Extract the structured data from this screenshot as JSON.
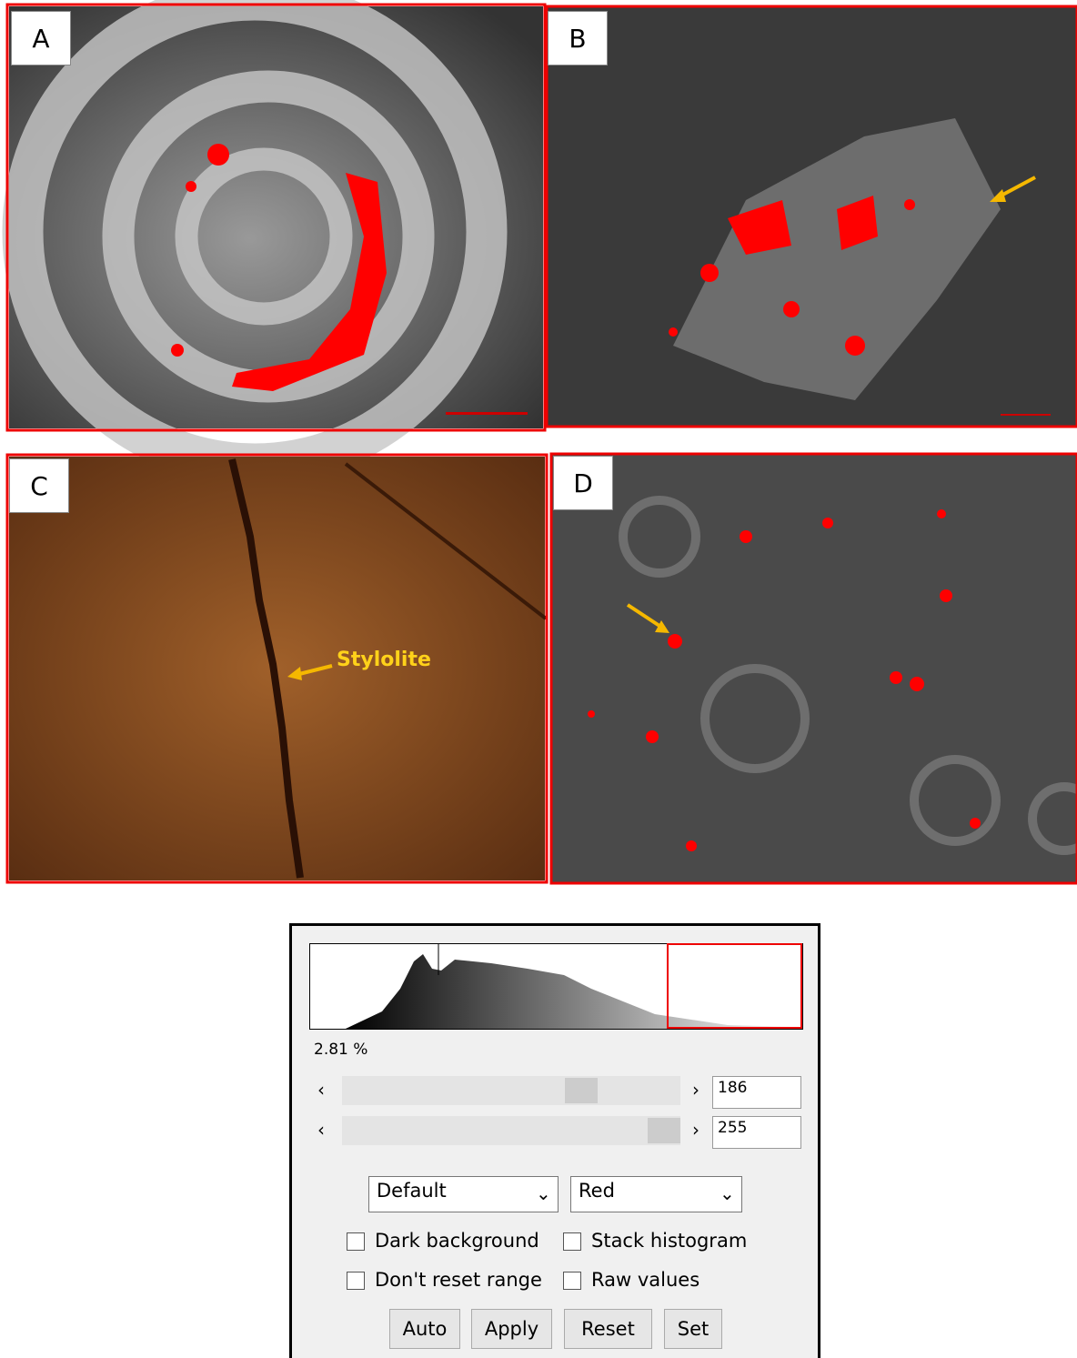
{
  "panels": [
    {
      "label": "A"
    },
    {
      "label": "B"
    },
    {
      "label": "C",
      "annotation": "Stylolite"
    },
    {
      "label": "D"
    }
  ],
  "threshold_dialog": {
    "percent": "2.81 %",
    "min_value": "186",
    "max_value": "255",
    "method": "Default",
    "display": "Red",
    "checkboxes": [
      "Dark background",
      "Stack histogram",
      "Don't reset range",
      "Raw values"
    ],
    "buttons": [
      "Auto",
      "Apply",
      "Reset",
      "Set"
    ]
  }
}
